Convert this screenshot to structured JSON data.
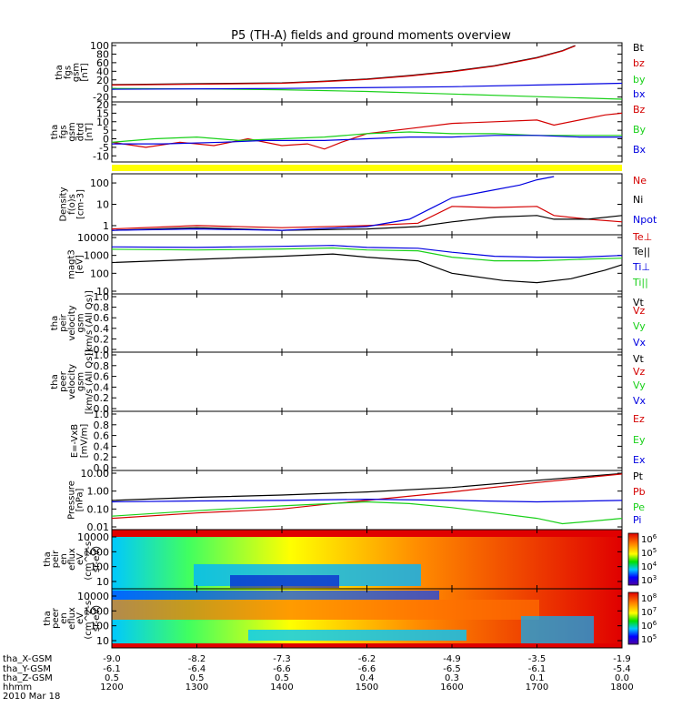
{
  "title": "P5 (TH-A) fields and ground moments overview",
  "colors": {
    "black": "#000000",
    "red": "#d40000",
    "green": "#19d019",
    "blue": "#0000e0",
    "yellow": "#ffff00"
  },
  "chart_data": [
    {
      "type": "line",
      "ylabel": [
        "tha",
        "fgs",
        "gsm",
        "[nT]"
      ],
      "yticks": [
        "100",
        "80",
        "60",
        "40",
        "20",
        "0",
        "-20"
      ],
      "ylim": [
        -25,
        100
      ],
      "series": [
        {
          "name": "Bt",
          "color": "black",
          "x": [
            1200,
            1300,
            1400,
            1450,
            1500,
            1550,
            1600,
            1650,
            1700,
            1730,
            1745
          ],
          "values": [
            9,
            11,
            13,
            17,
            22,
            30,
            40,
            53,
            72,
            88,
            100
          ]
        },
        {
          "name": "bz",
          "color": "red",
          "x": [
            1200,
            1300,
            1400,
            1450,
            1500,
            1550,
            1600,
            1650,
            1700,
            1730,
            1745
          ],
          "values": [
            8,
            10,
            12,
            16,
            21,
            29,
            39,
            52,
            71,
            87,
            99
          ]
        },
        {
          "name": "by",
          "color": "green",
          "x": [
            1200,
            1300,
            1400,
            1500,
            1600,
            1700,
            1800
          ],
          "values": [
            0,
            -1,
            -3,
            -7,
            -13,
            -19,
            -25
          ]
        },
        {
          "name": "bx",
          "color": "blue",
          "x": [
            1200,
            1400,
            1600,
            1800
          ],
          "values": [
            -2,
            0,
            4,
            12
          ]
        }
      ]
    },
    {
      "type": "line",
      "ylabel": [
        "tha",
        "fgs",
        "gsm",
        "dtrd",
        "[nT]"
      ],
      "yticks": [
        "20",
        "15",
        "10",
        "5",
        "0",
        "-5",
        "-10"
      ],
      "ylim": [
        -12,
        20
      ],
      "series": [
        {
          "name": "Bz",
          "color": "red",
          "x": [
            1200,
            1240,
            1280,
            1320,
            1360,
            1400,
            1430,
            1450,
            1470,
            1500,
            1550,
            1600,
            1650,
            1700,
            1720,
            1750,
            1780,
            1800
          ],
          "values": [
            -2,
            -5,
            -2,
            -4,
            0,
            -4,
            -3,
            -6,
            -2,
            3,
            6,
            9,
            10,
            11,
            8,
            11,
            14,
            15
          ]
        },
        {
          "name": "By",
          "color": "green",
          "x": [
            1200,
            1250,
            1300,
            1350,
            1400,
            1450,
            1500,
            1550,
            1600,
            1650,
            1700,
            1750,
            1800
          ],
          "values": [
            -2,
            0,
            1,
            -1,
            0,
            1,
            3,
            4,
            3,
            3,
            2,
            2,
            2
          ]
        },
        {
          "name": "Bx",
          "color": "blue",
          "x": [
            1200,
            1260,
            1330,
            1380,
            1450,
            1500,
            1550,
            1600,
            1650,
            1700,
            1750,
            1800
          ],
          "values": [
            -3,
            -3,
            -2,
            -1,
            -1,
            0,
            1,
            1,
            2,
            2,
            1,
            1
          ]
        }
      ]
    },
    {
      "type": "line",
      "ylabel": [
        "Density",
        "f(o)s",
        "[cm-3]"
      ],
      "yticks": [
        "100",
        "10",
        "1"
      ],
      "yscale": "log",
      "ylim": [
        0.5,
        200
      ],
      "series": [
        {
          "name": "Ne",
          "color": "red",
          "x": [
            1200,
            1300,
            1400,
            1500,
            1560,
            1600,
            1650,
            1700,
            1720,
            1760,
            1800
          ],
          "values": [
            0.7,
            1.0,
            0.8,
            1.0,
            1.3,
            8,
            7,
            8,
            3,
            2,
            1.5
          ]
        },
        {
          "name": "Ni",
          "color": "black",
          "x": [
            1200,
            1300,
            1400,
            1500,
            1560,
            1600,
            1650,
            1700,
            1720,
            1760,
            1800
          ],
          "values": [
            0.6,
            0.8,
            0.6,
            0.7,
            0.9,
            1.5,
            2.5,
            3,
            2,
            2,
            3
          ]
        },
        {
          "name": "Npot",
          "color": "blue",
          "x": [
            1200,
            1300,
            1400,
            1500,
            1550,
            1580,
            1600,
            1640,
            1680,
            1700,
            1720
          ],
          "values": [
            0.6,
            0.7,
            0.6,
            0.9,
            2,
            8,
            20,
            40,
            80,
            140,
            200
          ]
        },
        {
          "name": "Te⊥",
          "color": "red",
          "x": [],
          "values": []
        }
      ]
    },
    {
      "type": "line",
      "ylabel": [
        "magt3",
        "[eV]"
      ],
      "yticks": [
        "10000",
        "1000",
        "100",
        "10"
      ],
      "yscale": "log",
      "ylim": [
        10,
        10000
      ],
      "series": [
        {
          "name": "Te||",
          "color": "black",
          "x": [
            1200,
            1300,
            1400,
            1460,
            1500,
            1560,
            1600,
            1660,
            1700,
            1740,
            1780,
            1800
          ],
          "values": [
            400,
            600,
            900,
            1200,
            800,
            500,
            100,
            40,
            30,
            50,
            150,
            300
          ]
        },
        {
          "name": "Ti⊥",
          "color": "blue",
          "x": [
            1200,
            1300,
            1400,
            1460,
            1500,
            1560,
            1600,
            1650,
            1700,
            1750,
            1800
          ],
          "values": [
            3000,
            2800,
            3200,
            3600,
            2800,
            2500,
            1500,
            900,
            800,
            800,
            1000
          ]
        },
        {
          "name": "Ti||",
          "color": "green",
          "x": [
            1200,
            1300,
            1400,
            1460,
            1500,
            1560,
            1600,
            1650,
            1700,
            1750,
            1800
          ],
          "values": [
            2200,
            2000,
            2300,
            2600,
            2000,
            1800,
            800,
            500,
            500,
            600,
            700
          ]
        }
      ]
    },
    {
      "type": "line",
      "ylabel": [
        "tha",
        "peir",
        "velocity",
        "gsm",
        "[km/s (All Qs)]"
      ],
      "yticks": [
        "1.0",
        "0.8",
        "0.6",
        "0.4",
        "0.2",
        "0.0"
      ],
      "ylim": [
        0,
        1
      ],
      "series": [
        {
          "name": "Vt",
          "color": "black"
        },
        {
          "name": "Vz",
          "color": "red"
        },
        {
          "name": "Vy",
          "color": "green"
        },
        {
          "name": "Vx",
          "color": "blue"
        }
      ]
    },
    {
      "type": "line",
      "ylabel": [
        "tha",
        "peer",
        "velocity",
        "gsm",
        "[km/s (All Qs)]"
      ],
      "yticks": [
        "1.0",
        "0.8",
        "0.6",
        "0.4",
        "0.2",
        "0.0"
      ],
      "ylim": [
        0,
        1
      ],
      "series": [
        {
          "name": "Vt",
          "color": "black"
        },
        {
          "name": "Vz",
          "color": "red"
        },
        {
          "name": "Vy",
          "color": "green"
        },
        {
          "name": "Vx",
          "color": "blue"
        }
      ]
    },
    {
      "type": "line",
      "ylabel": [
        "E=-VxB",
        "[mV/m]"
      ],
      "yticks": [
        "1.0",
        "0.8",
        "0.6",
        "0.4",
        "0.2",
        "0.0"
      ],
      "ylim": [
        0,
        1
      ],
      "series": [
        {
          "name": "Ez",
          "color": "red"
        },
        {
          "name": "Ey",
          "color": "green"
        },
        {
          "name": "Ex",
          "color": "blue"
        }
      ]
    },
    {
      "type": "line",
      "ylabel": [
        "Pressure",
        "[nPa]"
      ],
      "yticks": [
        "10.00",
        "1.00",
        "0.10",
        "0.01"
      ],
      "yscale": "log",
      "ylim": [
        0.01,
        10
      ],
      "series": [
        {
          "name": "Pt",
          "color": "black",
          "x": [
            1200,
            1300,
            1400,
            1500,
            1600,
            1700,
            1800
          ],
          "values": [
            0.3,
            0.45,
            0.6,
            0.9,
            1.6,
            4,
            9.5
          ]
        },
        {
          "name": "Pb",
          "color": "red",
          "x": [
            1200,
            1300,
            1400,
            1450,
            1500,
            1600,
            1700,
            1800
          ],
          "values": [
            0.03,
            0.06,
            0.1,
            0.18,
            0.3,
            0.9,
            3,
            9
          ]
        },
        {
          "name": "Pe",
          "color": "green",
          "x": [
            1200,
            1300,
            1400,
            1500,
            1550,
            1600,
            1650,
            1700,
            1730,
            1760,
            1800
          ],
          "values": [
            0.04,
            0.08,
            0.15,
            0.25,
            0.2,
            0.12,
            0.06,
            0.03,
            0.015,
            0.02,
            0.03
          ]
        },
        {
          "name": "Pi",
          "color": "blue",
          "x": [
            1200,
            1300,
            1400,
            1500,
            1600,
            1700,
            1800
          ],
          "values": [
            0.25,
            0.28,
            0.3,
            0.35,
            0.3,
            0.25,
            0.3
          ]
        }
      ]
    },
    {
      "type": "heatmap",
      "ylabel": [
        "tha",
        "peir",
        "en",
        "eflux",
        "eV",
        "(cm^2-s-",
        "sr-eV)"
      ],
      "yticks": [
        "10000",
        "1000",
        "100",
        "10"
      ],
      "colorbar_ticks": [
        "10^6",
        "10^5",
        "10^4",
        "10^3"
      ]
    },
    {
      "type": "heatmap",
      "ylabel": [
        "tha",
        "peer",
        "en",
        "eflux",
        "eV",
        "(cm^2-s-",
        "sr-eV)"
      ],
      "yticks": [
        "10000",
        "1000",
        "100",
        "10"
      ],
      "colorbar_ticks": [
        "10^8",
        "10^7",
        "10^6",
        "10^5"
      ]
    }
  ],
  "x_axis": {
    "xlim": [
      1200,
      1800
    ],
    "rows": [
      {
        "label": "tha_X-GSM",
        "values": [
          "-9.0",
          "-8.2",
          "-7.3",
          "-6.2",
          "-4.9",
          "-3.5",
          "-1.9"
        ]
      },
      {
        "label": "tha_Y-GSM",
        "values": [
          "-6.1",
          "-6.4",
          "-6.6",
          "-6.6",
          "-6.5",
          "-6.1",
          "-5.4"
        ]
      },
      {
        "label": "tha_Z-GSM",
        "values": [
          "0.5",
          "0.5",
          "0.5",
          "0.4",
          "0.3",
          "0.1",
          "0.0"
        ]
      },
      {
        "label": "hhmm",
        "values": [
          "1200",
          "1300",
          "1400",
          "1500",
          "1600",
          "1700",
          "1800"
        ]
      }
    ],
    "date": "2010 Mar 18"
  }
}
